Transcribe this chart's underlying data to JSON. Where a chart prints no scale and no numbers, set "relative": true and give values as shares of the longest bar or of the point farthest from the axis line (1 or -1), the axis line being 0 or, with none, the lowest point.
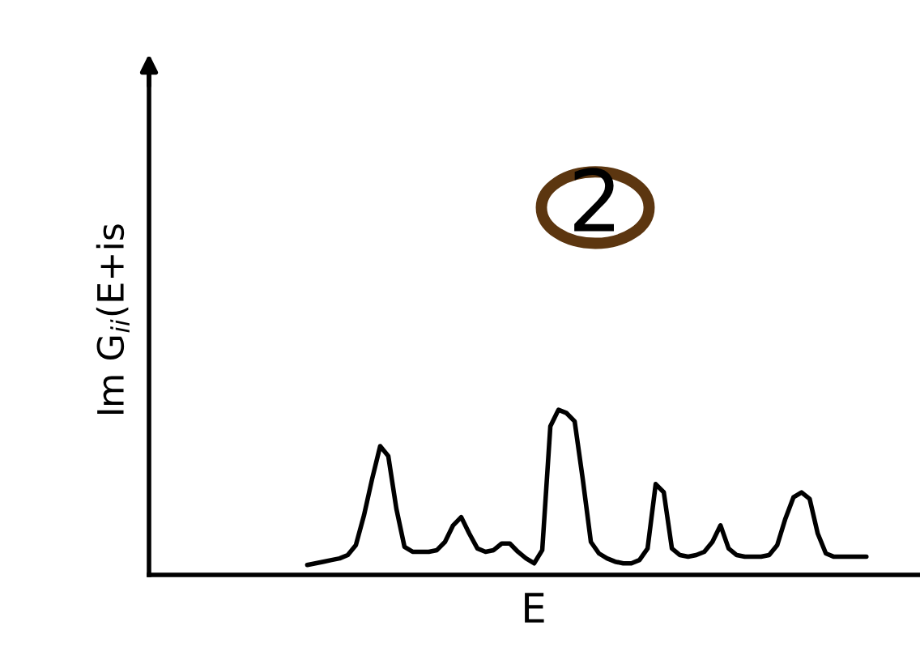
{
  "chart_data": {
    "type": "line",
    "relative": true,
    "xlabel": "E",
    "ylabel": "Im G$_{ii}$(E+is",
    "annotations": [
      "2"
    ],
    "color": "#000000",
    "categories": [
      null,
      null,
      null,
      null,
      null,
      null,
      null,
      null,
      null,
      null,
      null,
      null,
      null,
      null,
      null,
      null,
      null,
      null,
      null,
      null,
      null,
      null,
      null,
      null,
      null,
      null,
      null,
      null,
      null,
      null,
      null,
      null,
      null,
      null,
      null,
      null,
      null,
      null,
      null,
      null,
      null,
      null,
      null,
      null,
      null,
      null,
      null,
      null,
      null,
      null,
      null,
      null,
      null,
      null,
      null,
      null,
      null,
      null,
      null,
      null,
      null,
      null,
      null,
      null,
      null,
      null,
      null,
      null,
      null,
      null
    ],
    "values": [
      0.06,
      0.07,
      0.08,
      0.09,
      0.1,
      0.12,
      0.18,
      0.36,
      0.58,
      0.78,
      0.72,
      0.4,
      0.17,
      0.14,
      0.14,
      0.14,
      0.15,
      0.2,
      0.3,
      0.35,
      0.25,
      0.16,
      0.14,
      0.15,
      0.19,
      0.19,
      0.14,
      0.1,
      0.07,
      0.15,
      0.9,
      1,
      0.98,
      0.93,
      0.58,
      0.2,
      0.13,
      0.1,
      0.08,
      0.07,
      0.07,
      0.09,
      0.16,
      0.55,
      0.5,
      0.16,
      0.12,
      0.11,
      0.12,
      0.14,
      0.2,
      0.3,
      0.16,
      0.12,
      0.11,
      0.11,
      0.11,
      0.12,
      0.18,
      0.34,
      0.47,
      0.5,
      0.46,
      0.25,
      0.13,
      0.11,
      0.11,
      0.11,
      0.11,
      0.11
    ]
  }
}
